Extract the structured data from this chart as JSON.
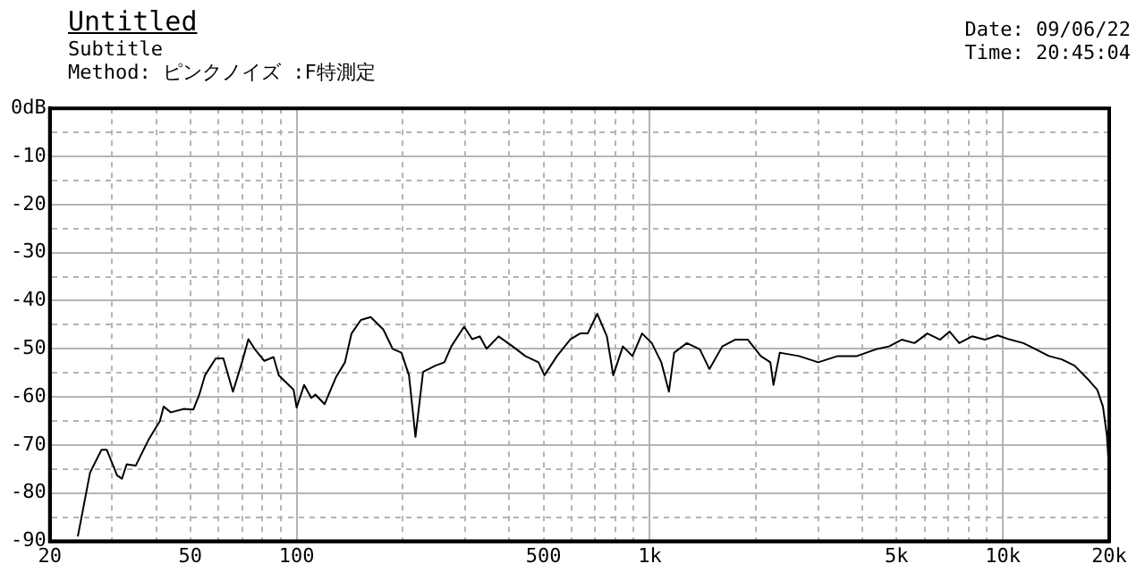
{
  "chart_data": {
    "type": "line",
    "title": "Untitled",
    "subtitle": "Subtitle",
    "annotations": [
      "Method: ピンクノイズ :F特測定",
      "Date: 09/06/22",
      "Time: 20:45:04"
    ],
    "series": [
      {
        "color": "#000000",
        "x": [
          24,
          26,
          28,
          29,
          31,
          32,
          33,
          35,
          38,
          41,
          42,
          44,
          48,
          51,
          53,
          55,
          59,
          62,
          66,
          70,
          73,
          76,
          81,
          86,
          89,
          98,
          100,
          105,
          110,
          113,
          120,
          129,
          137,
          143,
          152,
          162,
          176,
          187,
          198,
          208,
          217,
          228,
          247,
          262,
          274,
          298,
          314,
          330,
          345,
          373,
          409,
          444,
          484,
          503,
          546,
          596,
          635,
          667,
          710,
          756,
          788,
          839,
          893,
          951,
          1013,
          1078,
          1133,
          1172,
          1274,
          1386,
          1475,
          1604,
          1744,
          1896,
          2062,
          2195,
          2240,
          2334,
          2645,
          3000,
          3404,
          3856,
          4368,
          4754,
          5170,
          5620,
          6110,
          6640,
          7060,
          7520,
          8180,
          8890,
          9660,
          10500,
          11420,
          12400,
          13500,
          14680,
          15960,
          17350,
          18500,
          19200,
          19700,
          20000
        ],
        "values": [
          -89,
          -75.7,
          -71,
          -71,
          -76.3,
          -77,
          -74,
          -74.3,
          -69,
          -65,
          -62,
          -63.2,
          -62.5,
          -62.6,
          -59.5,
          -55.5,
          -52,
          -52,
          -58.9,
          -52.8,
          -48,
          -50,
          -52.5,
          -51.7,
          -55.5,
          -58.5,
          -62.2,
          -57.5,
          -60.2,
          -59.5,
          -61.5,
          -56,
          -52.8,
          -46.8,
          -44,
          -43.4,
          -46,
          -50,
          -50.8,
          -55.5,
          -68.3,
          -54.8,
          -53.5,
          -52.8,
          -49.5,
          -45.4,
          -48,
          -47.4,
          -50,
          -47.4,
          -49.5,
          -51.5,
          -52.8,
          -55.5,
          -51.5,
          -48,
          -46.8,
          -46.8,
          -42.7,
          -47.4,
          -55.5,
          -49.5,
          -51.5,
          -46.8,
          -48.8,
          -52.8,
          -58.9,
          -50.8,
          -48.8,
          -50.1,
          -54.2,
          -49.5,
          -48.1,
          -48.1,
          -51.5,
          -52.8,
          -57.5,
          -50.8,
          -51.5,
          -52.8,
          -51.5,
          -51.5,
          -50.1,
          -49.5,
          -48.1,
          -48.8,
          -46.8,
          -48.1,
          -46.4,
          -48.8,
          -47.4,
          -48.1,
          -47.2,
          -48.1,
          -48.8,
          -50.1,
          -51.5,
          -52.2,
          -53.5,
          -56.2,
          -58.5,
          -62,
          -68,
          -75.7
        ]
      }
    ],
    "log": "x",
    "xlim": [
      20,
      20000
    ],
    "xticks": [
      20,
      {
        "value": 30,
        "label": null
      },
      {
        "value": 40,
        "label": null
      },
      50,
      {
        "value": 60,
        "label": null
      },
      {
        "value": 70,
        "label": null
      },
      {
        "value": 80,
        "label": null
      },
      {
        "value": 90,
        "label": null
      },
      100,
      {
        "value": 200,
        "label": null
      },
      {
        "value": 300,
        "label": null
      },
      {
        "value": 400,
        "label": null
      },
      500,
      {
        "value": 600,
        "label": null
      },
      {
        "value": 700,
        "label": null
      },
      {
        "value": 800,
        "label": null
      },
      {
        "value": 900,
        "label": null
      },
      {
        "value": 1000,
        "label": "1k"
      },
      {
        "value": 2000,
        "label": null
      },
      {
        "value": 3000,
        "label": null
      },
      {
        "value": 4000,
        "label": null
      },
      {
        "value": 5000,
        "label": "5k"
      },
      {
        "value": 6000,
        "label": null
      },
      {
        "value": 7000,
        "label": null
      },
      {
        "value": 8000,
        "label": null
      },
      {
        "value": 9000,
        "label": null
      },
      {
        "value": 10000,
        "label": "10k"
      },
      {
        "value": 20000,
        "label": "20k"
      }
    ],
    "ylim": [
      -90,
      0
    ],
    "yticks": [
      {
        "value": 0,
        "label": "0dB"
      },
      {
        "value": -5,
        "label": null
      },
      -10,
      {
        "value": -15,
        "label": null
      },
      -20,
      {
        "value": -25,
        "label": null
      },
      -30,
      {
        "value": -35,
        "label": null
      },
      -40,
      {
        "value": -45,
        "label": null
      },
      -50,
      {
        "value": -55,
        "label": null
      },
      -60,
      {
        "value": -65,
        "label": null
      },
      -70,
      {
        "value": -75,
        "label": null
      },
      -80,
      {
        "value": -85,
        "label": null
      },
      -90
    ],
    "grid": true,
    "legend": false,
    "marker": "none",
    "line_style": "solid"
  }
}
